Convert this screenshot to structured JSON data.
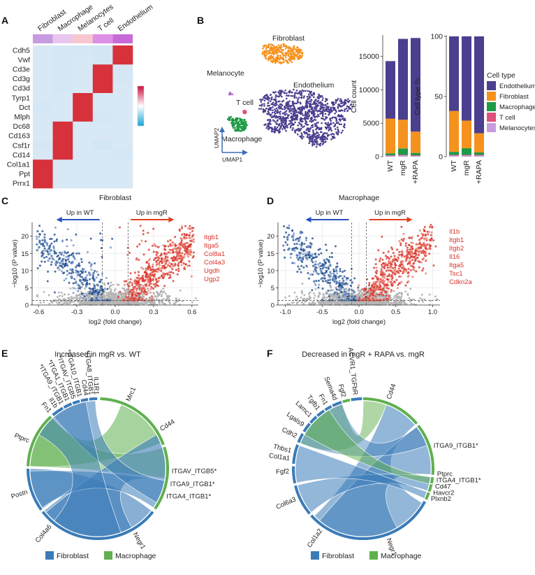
{
  "panels": {
    "A": "A",
    "B": "B",
    "C": "C",
    "D": "D",
    "E": "E",
    "F": "F"
  },
  "chart_data": [
    {
      "type": "heatmap",
      "panel": "A",
      "columns": [
        "Fibroblast",
        "Macrophage",
        "Melanocytes",
        "T cell",
        "Endothelium"
      ],
      "column_colors": [
        "#c79be0",
        "#e8c6ee",
        "#f6c7cf",
        "#de8fe6",
        "#c76ad8"
      ],
      "rows": [
        "Cdh5",
        "Vwf",
        "Cd3e",
        "Cd3g",
        "Cd3d",
        "Tyrp1",
        "Dct",
        "Mlph",
        "Dc68",
        "Cd163",
        "Csf1r",
        "Cd14",
        "Col1a1",
        "Ppt",
        "Prrx1"
      ],
      "values": [
        [
          0.1,
          0.15,
          0.15,
          0.2,
          2.5
        ],
        [
          0.1,
          0.15,
          0.1,
          0.2,
          2.5
        ],
        [
          0.1,
          0.15,
          0.1,
          2.5,
          0.15
        ],
        [
          0.1,
          0.15,
          0.1,
          2.5,
          0.15
        ],
        [
          0.1,
          0.15,
          0.1,
          2.5,
          0.1
        ],
        [
          0.1,
          0.1,
          2.5,
          0.1,
          0.1
        ],
        [
          0.15,
          0.1,
          2.5,
          0.1,
          0.1
        ],
        [
          0.1,
          0.1,
          2.5,
          0.15,
          0.1
        ],
        [
          0.1,
          2.5,
          0.1,
          0.1,
          0.1
        ],
        [
          0.1,
          2.5,
          0.1,
          0.1,
          0.1
        ],
        [
          0.15,
          2.5,
          0.1,
          0.2,
          0.1
        ],
        [
          0.1,
          2.5,
          0.1,
          0.1,
          0.15
        ],
        [
          2.5,
          0.1,
          0.1,
          0.1,
          0.1
        ],
        [
          2.5,
          0.1,
          0.1,
          0.1,
          0.1
        ],
        [
          2.5,
          0.1,
          0.1,
          0.1,
          0.1
        ]
      ],
      "legend_colors": [
        "#c8103b",
        "#ffffff",
        "#1aa3d6"
      ]
    },
    {
      "type": "scatter",
      "panel": "B-umap",
      "xlabel": "UMAP1",
      "ylabel": "UMAP2",
      "clusters": [
        {
          "name": "Fibroblast",
          "label": "Fibroblast",
          "color": "#f5921e"
        },
        {
          "name": "Melanocyte",
          "label": "Melanocyte",
          "color": "#b06bc8"
        },
        {
          "name": "Endothelium",
          "label": "Endothelium",
          "color": "#4b3f8f"
        },
        {
          "name": "T cell",
          "label": "T cell",
          "color": "#e0507a"
        },
        {
          "name": "Macrophage",
          "label": "Macrophage",
          "color": "#1d9a45"
        }
      ]
    },
    {
      "type": "bar",
      "panel": "B-count",
      "stacked": true,
      "categories": [
        "WT",
        "mgR",
        "+RAPA"
      ],
      "ylabel": "Cell count",
      "ylim": [
        0,
        18000
      ],
      "yticks": [
        0,
        5000,
        10000,
        15000
      ],
      "series": [
        {
          "name": "Melanocytes",
          "color": "#c79be0",
          "values": [
            150,
            200,
            150
          ]
        },
        {
          "name": "T cell",
          "color": "#e0507a",
          "values": [
            50,
            80,
            60
          ]
        },
        {
          "name": "Macrophage",
          "color": "#1d9a45",
          "values": [
            300,
            950,
            350
          ]
        },
        {
          "name": "Fibroblast",
          "color": "#f5921e",
          "values": [
            5200,
            4300,
            3200
          ]
        },
        {
          "name": "Endothelium",
          "color": "#4b3f8f",
          "values": [
            8600,
            12100,
            14000
          ]
        }
      ]
    },
    {
      "type": "bar",
      "panel": "B-percent",
      "stacked": true,
      "categories": [
        "WT",
        "mgR",
        "+RAPA"
      ],
      "ylabel": "Cell type %",
      "ylim": [
        0,
        100
      ],
      "yticks": [
        0,
        50,
        100
      ],
      "legend_title": "Cell type",
      "legend": [
        "Endothelium",
        "Fibroblast",
        "Macrophage",
        "T cell",
        "Melanocytes"
      ],
      "series": [
        {
          "name": "Melanocytes",
          "color": "#c79be0",
          "values": [
            1,
            1,
            1
          ]
        },
        {
          "name": "T cell",
          "color": "#e0507a",
          "values": [
            0.5,
            0.5,
            0.5
          ]
        },
        {
          "name": "Macrophage",
          "color": "#1d9a45",
          "values": [
            2.5,
            5.5,
            2
          ]
        },
        {
          "name": "Fibroblast",
          "color": "#f5921e",
          "values": [
            34,
            23,
            16
          ]
        },
        {
          "name": "Endothelium",
          "color": "#4b3f8f",
          "values": [
            62,
            70,
            80.5
          ]
        }
      ]
    },
    {
      "type": "scatter",
      "panel": "C",
      "title": "Fibroblast",
      "xlabel": "log2 (fold change)",
      "ylabel": "−log10 (P value)",
      "xlim": [
        -0.65,
        0.65
      ],
      "ylim": [
        0,
        24
      ],
      "xticks": [
        -0.6,
        -0.3,
        0.0,
        0.3,
        0.6
      ],
      "xtick_labels": [
        "-0.6",
        "-0.3",
        "0.0",
        "0.3",
        "0.6"
      ],
      "yticks": [
        0,
        5,
        10,
        15,
        20
      ],
      "threshold_x": [
        -0.1,
        0.1
      ],
      "threshold_y": 1.3,
      "up_left": "Up in WT",
      "up_right": "Up in mgR",
      "genes": [
        "Itgb1",
        "Itga5",
        "Col8a1",
        "Col4a3",
        "Ugdh",
        "Ugp2"
      ]
    },
    {
      "type": "scatter",
      "panel": "D",
      "title": "Macrophage",
      "xlabel": "log2 (fold change)",
      "ylabel": "−log10 (P value)",
      "xlim": [
        -1.1,
        1.1
      ],
      "ylim": [
        0,
        24
      ],
      "xticks": [
        -1.0,
        -0.5,
        0.0,
        0.5,
        1.0
      ],
      "xtick_labels": [
        "-1.0",
        "-0.5",
        "0.0",
        "0.5",
        "1.0"
      ],
      "yticks": [
        0,
        5,
        10,
        15,
        20
      ],
      "threshold_x": [
        -0.1,
        0.1
      ],
      "threshold_y": 1.3,
      "up_left": "Up in WT",
      "up_right": "Up in mgR",
      "genes": [
        "Il1b",
        "Itgb1",
        "Itgb2",
        "Il16",
        "Itga5",
        "Tsc1",
        "Cdkn2a"
      ]
    },
    {
      "type": "chord",
      "panel": "E",
      "title": "Increased in mgR vs. WT",
      "labels": [
        "Mrc1",
        "Cd44",
        "ITGAV_ITGB5*",
        "ITGA9_ITGB1*",
        "ITGA4_ITGB1*",
        "Negr1",
        "Col4a6",
        "Postn",
        "Ptprc",
        "Fn1",
        "Il1b",
        "*ITGA9_ITGB1",
        "*ITGA1_ITGB1",
        "*ITGAV_ITGB5",
        "*ITGA10_ITGB1",
        "Cd44",
        "*ITGA8_ITGB1",
        "IL1R1"
      ]
    },
    {
      "type": "chord",
      "panel": "F",
      "title": "Decreased in mgR + RAPA vs. mgR",
      "labels": [
        "ACVR1_TGFbR",
        "Fgf2",
        "Sema4d",
        "Fn1",
        "Tgfb1",
        "Lamc1",
        "Lgals9",
        "Cdh2",
        "Thbs1",
        "Col1a1",
        "Fgf2",
        "Col6a3",
        "Col1a2",
        "Negr1",
        "Cd44",
        "ITGA9_ITGB1*",
        "Ptprc",
        "ITGA4_ITGB1*",
        "Cd47",
        "Havcr2",
        "Plxnb2"
      ]
    }
  ],
  "chord_legend": {
    "fibroblast": "Fibroblast",
    "macrophage": "Macrophage",
    "fibroblast_color": "#3a7bb8",
    "macrophage_color": "#5fb04e"
  }
}
